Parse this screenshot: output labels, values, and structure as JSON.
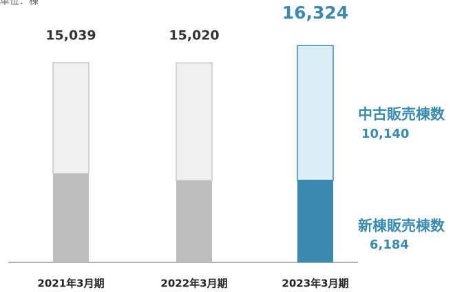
{
  "chart_data": {
    "type": "stacked_bar",
    "unit_label": "単位：棟",
    "categories": [
      "2021年3月期",
      "2022年3月期",
      "2023年3月期"
    ],
    "series": [
      {
        "name": "新棟販売棟数",
        "colors": [
          "#bdbdbd",
          "#bdbdbd",
          "#3a8ab0"
        ],
        "values": [
          6690,
          6170,
          6184
        ],
        "value_labels": [
          null,
          null,
          "6,184"
        ]
      },
      {
        "name": "中古販売棟数",
        "colors": [
          "#f0f0f0",
          "#f0f0f0",
          "#dcedf5"
        ],
        "values": [
          8349,
          8850,
          10140
        ],
        "value_labels": [
          null,
          null,
          "10,140"
        ]
      }
    ],
    "totals": [
      15039,
      15020,
      16324
    ],
    "total_labels": [
      "15,039",
      "15,020",
      "16,324"
    ],
    "highlight_color": "#3a8ab0",
    "ylim": [
      0,
      17000
    ]
  }
}
